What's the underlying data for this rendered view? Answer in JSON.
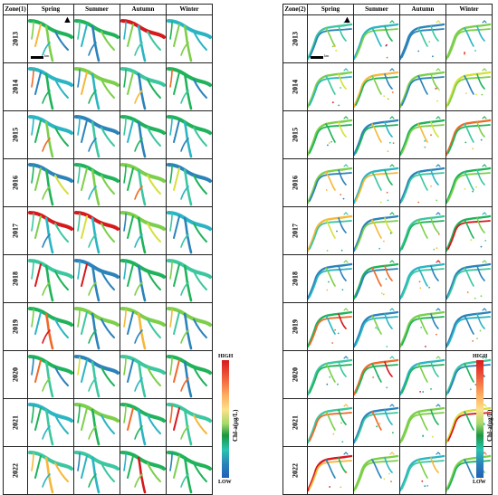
{
  "panels": [
    {
      "zone_label": "Zone(1)",
      "seasons": [
        "Spring",
        "Summer",
        "Autumn",
        "Winter"
      ],
      "scale_unit": "km"
    },
    {
      "zone_label": "Zone(2)",
      "seasons": [
        "Spring",
        "Summer",
        "Autumn",
        "Winter"
      ],
      "scale_unit": "km"
    }
  ],
  "years": [
    "2013",
    "2014",
    "2015",
    "2016",
    "2017",
    "2018",
    "2019",
    "2020",
    "2021",
    "2022"
  ],
  "legend": {
    "high": "HIGH",
    "low": "LOW",
    "title": "Chl-a(μg/L)"
  },
  "colors": {
    "high": "#d7191c",
    "mid": "#1a9641",
    "low": "#2b83ba"
  },
  "icons": [
    "north-arrow-icon",
    "scale-bar"
  ]
}
